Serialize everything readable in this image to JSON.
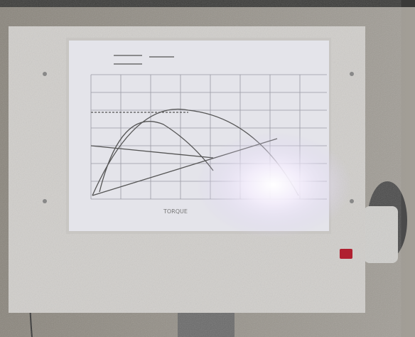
{
  "screen": {
    "x_label": "TORQUE"
  }
}
